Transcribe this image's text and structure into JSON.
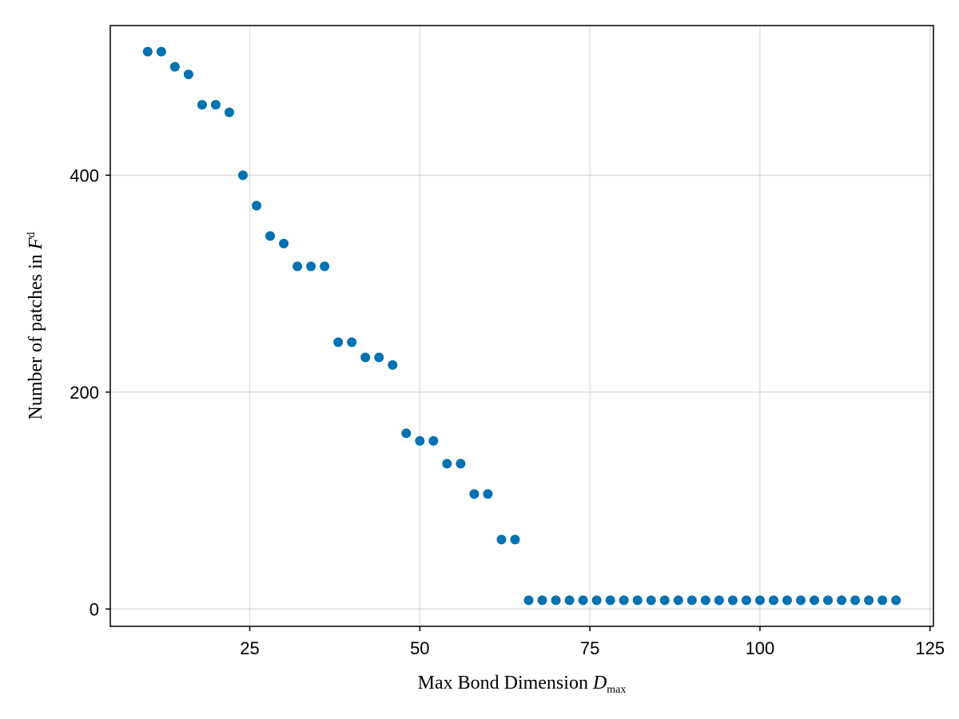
{
  "chart_data": {
    "type": "scatter",
    "title": "",
    "xlabel": {
      "main": "Max Bond Dimension ",
      "symbol": "D",
      "subscript": "max"
    },
    "ylabel": {
      "main": "Number of patches in ",
      "symbol": "F",
      "superscript": "d"
    },
    "xlim": [
      4.5,
      125.5
    ],
    "ylim": [
      -16,
      538
    ],
    "x_ticks": [
      25,
      50,
      75,
      100,
      125
    ],
    "x_tick_labels": [
      "25",
      "50",
      "75",
      "100",
      "125"
    ],
    "y_ticks": [
      0,
      200,
      400
    ],
    "y_tick_labels": [
      "0",
      "200",
      "400"
    ],
    "grid": true,
    "marker_color": "#0072b2",
    "series": [
      {
        "x": [
          10,
          12,
          14,
          16,
          18,
          20,
          22,
          24,
          26,
          28,
          30,
          32,
          34,
          36,
          38,
          40,
          42,
          44,
          46,
          48,
          50,
          52,
          54,
          56,
          58,
          60,
          62,
          64,
          66,
          68,
          70,
          72,
          74,
          76,
          78,
          80,
          82,
          84,
          86,
          88,
          90,
          92,
          94,
          96,
          98,
          100,
          102,
          104,
          106,
          108,
          110,
          112,
          114,
          116,
          118,
          120
        ],
        "y": [
          514,
          514,
          500,
          493,
          465,
          465,
          458,
          400,
          372,
          344,
          337,
          316,
          316,
          316,
          246,
          246,
          232,
          232,
          225,
          162,
          155,
          155,
          134,
          134,
          106,
          106,
          64,
          64,
          8,
          8,
          8,
          8,
          8,
          8,
          8,
          8,
          8,
          8,
          8,
          8,
          8,
          8,
          8,
          8,
          8,
          8,
          8,
          8,
          8,
          8,
          8,
          8,
          8,
          8,
          8,
          8
        ]
      }
    ]
  }
}
